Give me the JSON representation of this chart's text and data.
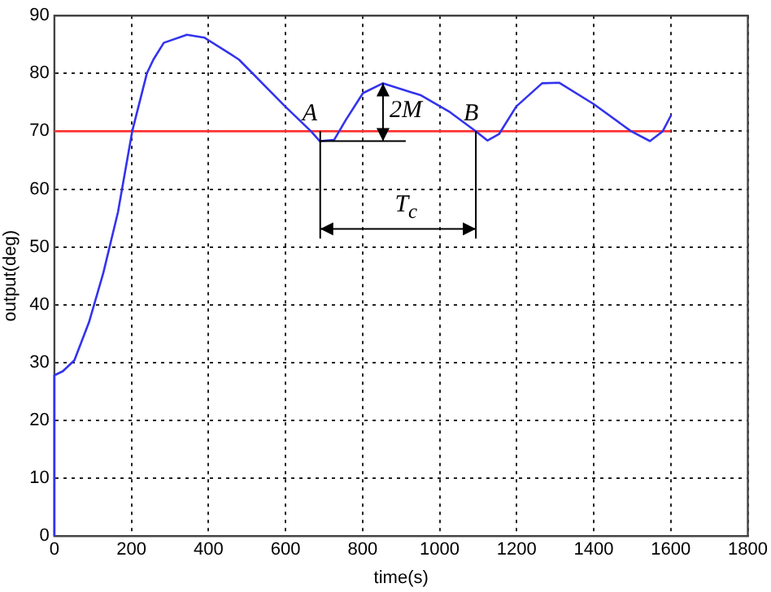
{
  "chart_data": {
    "type": "line",
    "xlabel": "time(s)",
    "ylabel": "output(deg)",
    "xlim": [
      0,
      1800
    ],
    "xticks": [
      0,
      200,
      400,
      600,
      800,
      1000,
      1200,
      1400,
      1600,
      1800
    ],
    "ylim": [
      0,
      90
    ],
    "yticks": [
      0,
      10,
      20,
      30,
      40,
      50,
      60,
      70,
      80,
      90
    ],
    "grid": true,
    "legend": false,
    "marker": "none",
    "line_style": "solid",
    "series": [
      {
        "color": "#3333ee",
        "x": [
          0,
          0,
          22,
          52,
          90,
          127,
          165,
          202,
          240,
          257,
          284,
          344,
          389,
          456,
          479,
          599,
          666,
          689,
          726,
          756,
          801,
          853,
          952,
          1027,
          1094,
          1124,
          1154,
          1199,
          1266,
          1310,
          1400,
          1497,
          1546,
          1579,
          1601
        ],
        "values": [
          0,
          27.8,
          28.5,
          30.4,
          37,
          45.5,
          56,
          70,
          80,
          82.4,
          85.3,
          86.7,
          86.2,
          83.4,
          82.4,
          74.3,
          70,
          68.3,
          68.5,
          71.9,
          76.6,
          78.3,
          76.2,
          73.3,
          70,
          68.4,
          69.5,
          74.3,
          78.3,
          78.4,
          74.7,
          70,
          68.3,
          70,
          72.8
        ]
      },
      {
        "color": "#ff3333",
        "x": [
          0,
          1600
        ],
        "values": [
          70,
          70
        ]
      }
    ],
    "annotations": [
      {
        "text": "A",
        "x": 690,
        "y": 70
      },
      {
        "text": "B",
        "x": 1094,
        "y": 70
      },
      {
        "text": "2M",
        "x": 853,
        "y": 78.3
      },
      "T$_{c}$"
    ]
  }
}
